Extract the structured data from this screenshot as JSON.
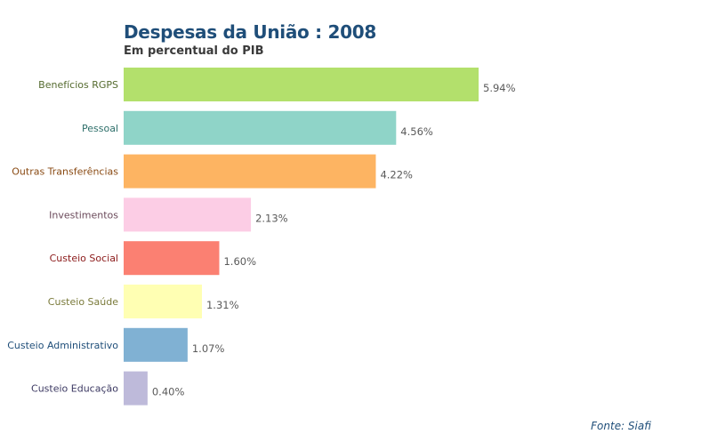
{
  "chart_data": {
    "type": "bar",
    "orientation": "horizontal",
    "title": "Despesas da União : 2008",
    "subtitle": "Em percentual do PIB",
    "categories": [
      "Benefícios RGPS",
      "Pessoal",
      "Outras Transferências",
      "Investimentos",
      "Custeio Social",
      "Custeio Saúde",
      "Custeio Administrativo",
      "Custeio Educação"
    ],
    "values": [
      5.94,
      4.56,
      4.22,
      2.13,
      1.6,
      1.31,
      1.07,
      0.4
    ],
    "value_labels": [
      "5.94%",
      "4.56%",
      "4.22%",
      "2.13%",
      "1.60%",
      "1.31%",
      "1.07%",
      "0.40%"
    ],
    "colors": [
      "#b3e06c",
      "#8fd4c8",
      "#fdb462",
      "#fccde5",
      "#fb8072",
      "#ffffb3",
      "#80b1d3",
      "#bebada"
    ],
    "label_colors": [
      "#556b2f",
      "#2e6f6a",
      "#8a4b14",
      "#6b4a5b",
      "#8b1a1a",
      "#7a7a3a",
      "#1f4e79",
      "#3d3a63"
    ],
    "value_label_color": "#5a5a5a",
    "xlim": [
      0,
      6.5
    ],
    "grid": false,
    "legend": "none"
  },
  "source": "Fonte: Siafi"
}
